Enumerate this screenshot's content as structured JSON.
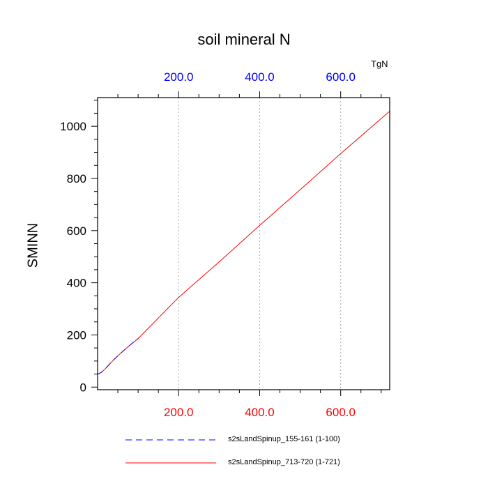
{
  "chart_data": {
    "type": "line",
    "title": "soil mineral N",
    "units_label": "TgN",
    "ylabel": "SMINN",
    "xlim": [
      0,
      721
    ],
    "ylim": [
      -10,
      1110
    ],
    "x_ticks": [
      200,
      400,
      600
    ],
    "x_tick_labels": [
      "200.0",
      "400.0",
      "600.0"
    ],
    "y_ticks": [
      0,
      200,
      400,
      600,
      800,
      1000
    ],
    "y_tick_labels": [
      "0",
      "200",
      "400",
      "600",
      "800",
      "1000"
    ],
    "grid": "vertical-dotted",
    "top_tick_color": "#0000ff",
    "bottom_tick_color": "#ff0000",
    "series": [
      {
        "name": "s2sLandSpinup_155-161 (1-100)",
        "color": "#0000ff",
        "dash": "dashed",
        "x": [
          1,
          10,
          20,
          30,
          40,
          50,
          60,
          70,
          80,
          90,
          100
        ],
        "y": [
          50,
          57,
          72,
          89,
          105,
          120,
          134,
          148,
          161,
          174,
          186
        ]
      },
      {
        "name": "s2sLandSpinup_713-720 (1-721)",
        "color": "#ff0000",
        "dash": "solid",
        "x": [
          1,
          10,
          20,
          30,
          40,
          50,
          60,
          80,
          100,
          200,
          300,
          400,
          500,
          600,
          721
        ],
        "y": [
          50,
          57,
          72,
          89,
          105,
          120,
          134,
          161,
          186,
          344,
          480,
          620,
          757,
          895,
          1058
        ]
      }
    ]
  }
}
